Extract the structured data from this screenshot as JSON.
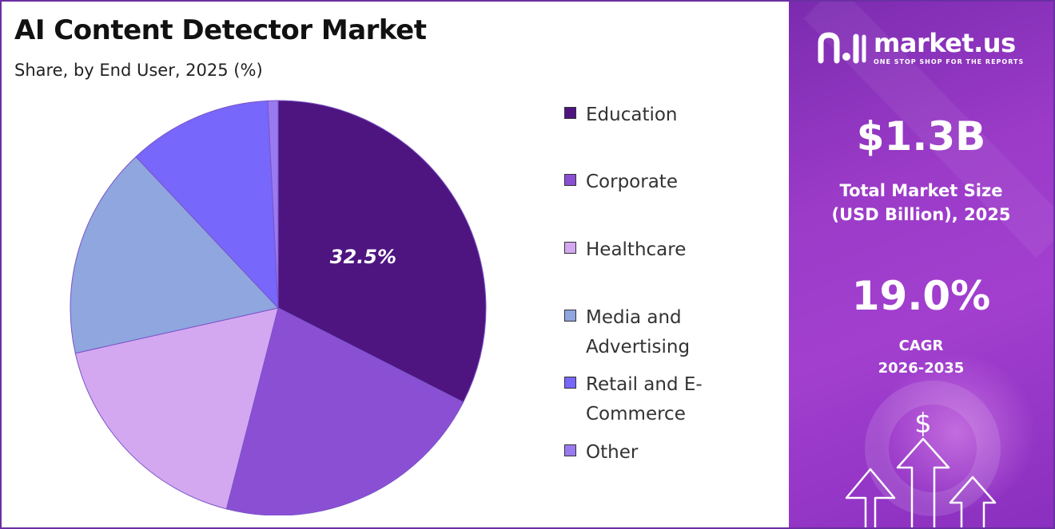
{
  "title": "AI Content Detector Market",
  "subtitle": "Share, by End User, 2025 (%)",
  "chart_data": {
    "type": "pie",
    "title": "AI Content Detector Market",
    "subtitle": "Share, by End User, 2025 (%)",
    "categories": [
      "Education",
      "Corporate",
      "Healthcare",
      "Media and Advertising",
      "Retail and E-Commerce",
      "Other"
    ],
    "values": [
      32.5,
      21.5,
      17.5,
      16.5,
      11.2,
      0.8
    ],
    "colors": [
      "#4e1581",
      "#8b4fd4",
      "#d4a8f0",
      "#8fa6df",
      "#7767fb",
      "#9a7af0"
    ],
    "data_labels": [
      "32.5%",
      "",
      "",
      "",
      "",
      ""
    ],
    "legend_position": "right"
  },
  "legend": {
    "items": [
      {
        "label": "Education",
        "color": "#4e1581"
      },
      {
        "label": "Corporate",
        "color": "#8b4fd4"
      },
      {
        "label": "Healthcare",
        "color": "#d4a8f0"
      },
      {
        "label": "Media and Advertising",
        "color": "#8fa6df"
      },
      {
        "label": "Retail and E-Commerce",
        "color": "#7767fb"
      },
      {
        "label": "Other",
        "color": "#9a7af0"
      }
    ]
  },
  "brand": {
    "name": "market.us",
    "tagline": "ONE STOP SHOP FOR THE REPORTS"
  },
  "stats": {
    "market_size_value": "$1.3B",
    "market_size_label_1": "Total Market Size",
    "market_size_label_2": "(USD Billion), 2025",
    "cagr_value": "19.0%",
    "cagr_label": "CAGR",
    "cagr_period": "2026-2035"
  },
  "decor": {
    "dollar_sign": "$"
  },
  "colors": {
    "panel_accent": "#9b3bc8",
    "border": "#6b2fa3"
  }
}
